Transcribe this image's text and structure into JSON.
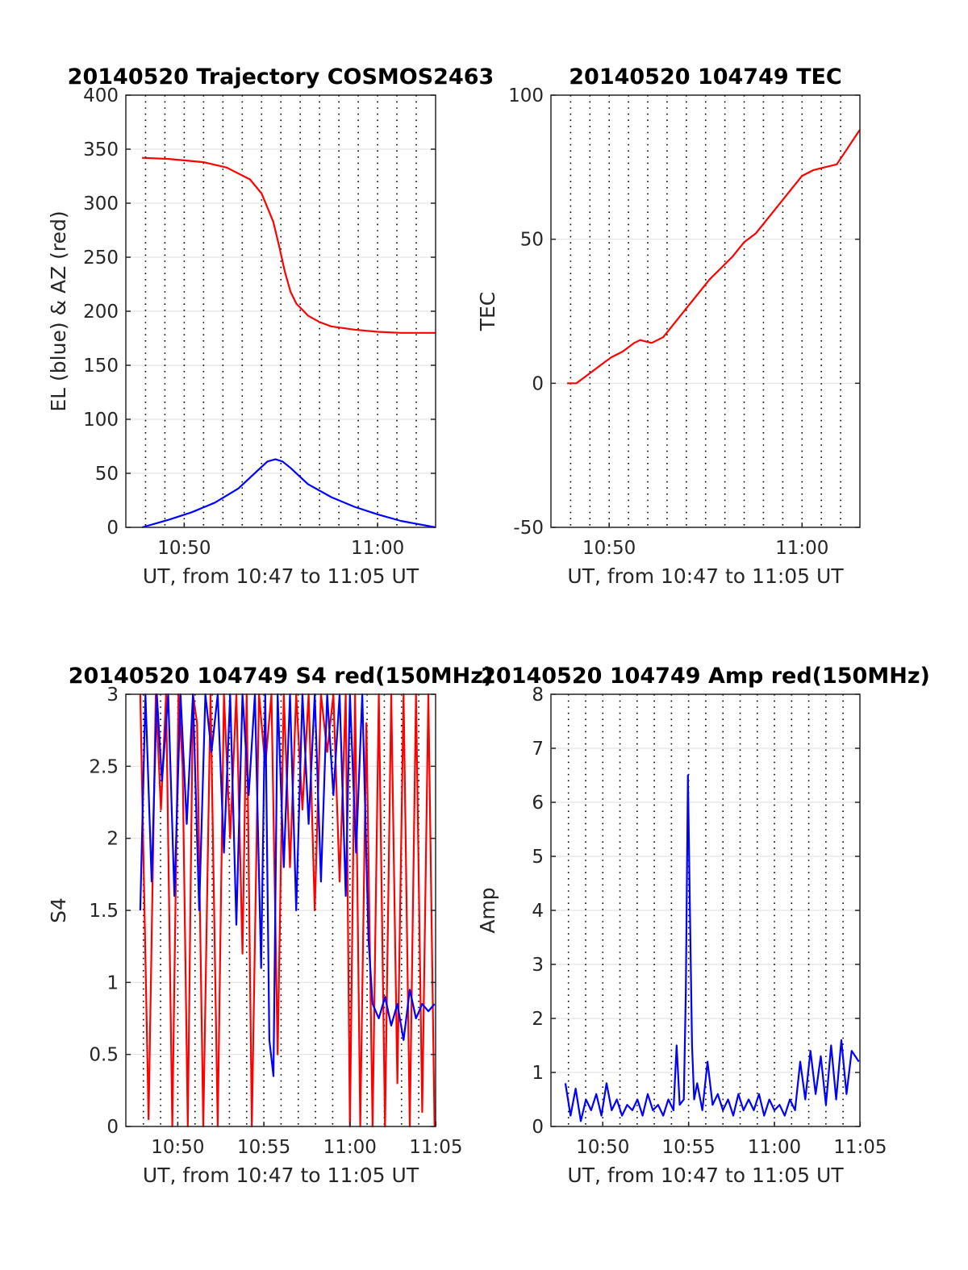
{
  "chart_data": [
    {
      "type": "line",
      "title": "20140520 Trajectory COSMOS2463",
      "xlabel": "UT, from 10:47 to 11:05 UT",
      "ylabel": "EL (blue) & AZ (red)",
      "xlim": [
        10.783,
        11.05
      ],
      "ylim": [
        0,
        400
      ],
      "yticks": [
        0,
        50,
        100,
        150,
        200,
        250,
        300,
        350,
        400
      ],
      "xticks": [
        {
          "v": 10.8333,
          "label": "10:50"
        },
        {
          "v": 11.0,
          "label": "11:00"
        }
      ],
      "grid": true,
      "series": [
        {
          "color": "#ff0000",
          "x": [
            10.797,
            10.82,
            10.85,
            10.87,
            10.89,
            10.9,
            10.91,
            10.915,
            10.92,
            10.925,
            10.93,
            10.94,
            10.95,
            10.96,
            10.98,
            11.0,
            11.02,
            11.05
          ],
          "y": [
            342,
            341,
            338,
            333,
            322,
            309,
            283,
            261,
            237,
            218,
            207,
            196,
            190,
            186,
            183,
            181,
            180,
            180
          ]
        },
        {
          "color": "#0000ff",
          "x": [
            10.797,
            10.82,
            10.84,
            10.86,
            10.88,
            10.895,
            10.905,
            10.912,
            10.918,
            10.925,
            10.94,
            10.96,
            10.98,
            11.0,
            11.02,
            11.05
          ],
          "y": [
            0,
            7,
            14,
            23,
            36,
            51,
            61,
            63,
            61,
            55,
            40,
            28,
            19,
            12,
            6,
            0
          ]
        }
      ]
    },
    {
      "type": "line",
      "title": "20140520 104749 TEC",
      "xlabel": "UT, from 10:47 to 11:05 UT",
      "ylabel": "TEC",
      "xlim": [
        10.783,
        11.05
      ],
      "ylim": [
        -50,
        100
      ],
      "yticks": [
        -50,
        0,
        50,
        100
      ],
      "xticks": [
        {
          "v": 10.8333,
          "label": "10:50"
        },
        {
          "v": 11.0,
          "label": "11:00"
        }
      ],
      "grid": true,
      "series": [
        {
          "color": "#ff0000",
          "x": [
            10.797,
            10.805,
            10.815,
            10.825,
            10.835,
            10.845,
            10.855,
            10.86,
            10.87,
            10.88,
            10.89,
            10.9,
            10.91,
            10.92,
            10.93,
            10.94,
            10.95,
            10.96,
            10.97,
            10.98,
            10.99,
            11.0,
            11.01,
            11.02,
            11.03,
            11.04,
            11.05
          ],
          "y": [
            0,
            0,
            3,
            6,
            9,
            11,
            14,
            15,
            14,
            16,
            21,
            26,
            31,
            36,
            40,
            44,
            49,
            52,
            57,
            62,
            67,
            72,
            74,
            75,
            76,
            82,
            88
          ]
        }
      ]
    },
    {
      "type": "line",
      "title": "20140520 104749 S4 red(150MHz)",
      "xlabel": "UT, from 10:47 to 11:05 UT",
      "ylabel": "S4",
      "xlim": [
        10.783,
        11.083
      ],
      "ylim": [
        0,
        3
      ],
      "yticks": [
        0,
        0.5,
        1,
        1.5,
        2,
        2.5,
        3
      ],
      "ytick_labels": [
        "0",
        "0.5",
        "1",
        "1.5",
        "2",
        "2.5",
        "3"
      ],
      "xticks": [
        {
          "v": 10.8333,
          "label": "10:50"
        },
        {
          "v": 10.9167,
          "label": "10:55"
        },
        {
          "v": 11.0,
          "label": "11:00"
        },
        {
          "v": 11.0833,
          "label": "11:05"
        }
      ],
      "grid": true,
      "series": [
        {
          "color": "#ff0000",
          "x": [
            10.797,
            10.805,
            10.812,
            10.817,
            10.822,
            10.828,
            10.834,
            10.838,
            10.843,
            10.848,
            10.852,
            10.858,
            10.865,
            10.872,
            10.878,
            10.884,
            10.89,
            10.896,
            10.9,
            10.905,
            10.912,
            10.918,
            10.924,
            10.93,
            10.936,
            10.942,
            10.948,
            10.954,
            10.96,
            10.966,
            10.972,
            10.978,
            10.984,
            10.99,
            10.996,
            11.0,
            11.005,
            11.01,
            11.016,
            11.022,
            11.028,
            11.034,
            11.04,
            11.046,
            11.052,
            11.058,
            11.064,
            11.07,
            11.076,
            11.082
          ],
          "y": [
            3,
            0.05,
            3,
            2.2,
            3,
            0,
            3,
            2.5,
            0,
            3,
            2.8,
            0,
            3,
            0,
            3,
            2,
            3,
            1.2,
            3,
            0,
            3,
            2.5,
            3,
            0.5,
            3,
            1.8,
            3,
            2.2,
            3,
            1.5,
            3,
            2.6,
            3,
            1.7,
            3,
            0,
            3,
            0,
            2.8,
            0,
            3,
            0,
            3,
            0.3,
            3,
            0,
            3,
            0.1,
            3,
            0
          ]
        },
        {
          "color": "#0000ff",
          "x": [
            10.797,
            10.802,
            10.808,
            10.813,
            10.818,
            10.824,
            10.83,
            10.836,
            10.842,
            10.848,
            10.854,
            10.86,
            10.866,
            10.872,
            10.878,
            10.884,
            10.89,
            10.896,
            10.902,
            10.908,
            10.914,
            10.918,
            10.922,
            10.926,
            10.93,
            10.936,
            10.942,
            10.948,
            10.954,
            10.96,
            10.966,
            10.972,
            10.978,
            10.984,
            10.99,
            10.996,
            11.0,
            11.006,
            11.012,
            11.018,
            11.022,
            11.028,
            11.034,
            11.04,
            11.046,
            11.052,
            11.058,
            11.064,
            11.07,
            11.076,
            11.082
          ],
          "y": [
            1.5,
            3,
            1.7,
            3,
            2.4,
            3,
            1.6,
            3,
            2.1,
            3,
            1.5,
            3,
            2.6,
            3,
            1.9,
            3,
            1.4,
            3,
            2.3,
            3,
            1.1,
            3,
            0.6,
            0.35,
            3,
            1.8,
            3,
            1.5,
            3,
            2.1,
            3,
            1.7,
            3,
            2.3,
            3,
            1.6,
            3,
            1.9,
            3,
            1.3,
            0.85,
            0.75,
            0.9,
            0.7,
            0.85,
            0.6,
            0.95,
            0.75,
            0.85,
            0.8,
            0.85
          ]
        }
      ]
    },
    {
      "type": "line",
      "title": "20140520 104749 Amp red(150MHz)",
      "xlabel": "UT, from 10:47 to 11:05 UT",
      "ylabel": "Amp",
      "xlim": [
        10.783,
        11.083
      ],
      "ylim": [
        0,
        8
      ],
      "yticks": [
        0,
        1,
        2,
        3,
        4,
        5,
        6,
        7,
        8
      ],
      "xticks": [
        {
          "v": 10.8333,
          "label": "10:50"
        },
        {
          "v": 10.9167,
          "label": "10:55"
        },
        {
          "v": 11.0,
          "label": "11:00"
        },
        {
          "v": 11.0833,
          "label": "11:05"
        }
      ],
      "grid": true,
      "series": [
        {
          "color": "#0000ff",
          "x": [
            10.797,
            10.802,
            10.807,
            10.812,
            10.817,
            10.822,
            10.827,
            10.832,
            10.837,
            10.842,
            10.847,
            10.852,
            10.857,
            10.862,
            10.867,
            10.872,
            10.877,
            10.882,
            10.887,
            10.892,
            10.897,
            10.902,
            10.905,
            10.908,
            10.912,
            10.914,
            10.916,
            10.918,
            10.92,
            10.922,
            10.925,
            10.93,
            10.935,
            10.94,
            10.945,
            10.95,
            10.955,
            10.96,
            10.965,
            10.97,
            10.975,
            10.98,
            10.985,
            10.99,
            10.995,
            11.0,
            11.005,
            11.01,
            11.015,
            11.02,
            11.025,
            11.03,
            11.035,
            11.04,
            11.045,
            11.05,
            11.055,
            11.06,
            11.065,
            11.07,
            11.075,
            11.082
          ],
          "y": [
            0.8,
            0.2,
            0.7,
            0.1,
            0.5,
            0.3,
            0.6,
            0.2,
            0.8,
            0.3,
            0.5,
            0.2,
            0.4,
            0.3,
            0.5,
            0.2,
            0.6,
            0.3,
            0.4,
            0.2,
            0.5,
            0.3,
            1.5,
            0.4,
            0.5,
            2.5,
            6.5,
            4.0,
            1.5,
            0.5,
            0.8,
            0.3,
            1.2,
            0.4,
            0.6,
            0.3,
            0.5,
            0.2,
            0.6,
            0.3,
            0.5,
            0.3,
            0.6,
            0.2,
            0.5,
            0.3,
            0.4,
            0.2,
            0.5,
            0.3,
            1.2,
            0.5,
            1.4,
            0.6,
            1.3,
            0.4,
            1.5,
            0.5,
            1.6,
            0.6,
            1.4,
            1.2
          ]
        }
      ]
    }
  ]
}
